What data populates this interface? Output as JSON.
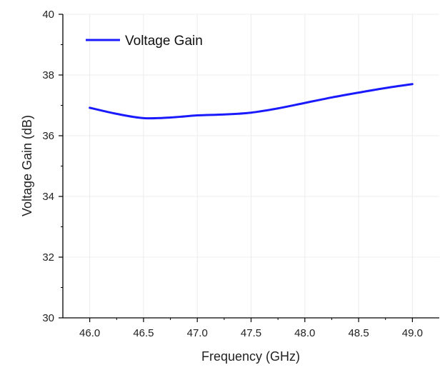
{
  "chart_data": {
    "type": "line",
    "title": "",
    "xlabel": "Frequency (GHz)",
    "ylabel": "Voltage Gain (dB)",
    "xlim": [
      45.75,
      49.25
    ],
    "ylim": [
      30,
      40
    ],
    "xticks": [
      46.0,
      46.5,
      47.0,
      47.5,
      48.0,
      48.5,
      49.0
    ],
    "xtick_labels": [
      "46.0",
      "46.5",
      "47.0",
      "47.5",
      "48.0",
      "48.5",
      "49.0"
    ],
    "yticks": [
      30,
      32,
      34,
      36,
      38,
      40
    ],
    "ytick_labels": [
      "30",
      "32",
      "34",
      "36",
      "38",
      "40"
    ],
    "grid": true,
    "legend_position": "top-left",
    "series": [
      {
        "name": "Voltage Gain",
        "color": "#1a1aff",
        "x": [
          46.0,
          46.25,
          46.5,
          46.75,
          47.0,
          47.25,
          47.5,
          47.75,
          48.0,
          48.25,
          48.5,
          48.75,
          49.0
        ],
        "y": [
          36.92,
          36.72,
          36.58,
          36.6,
          36.67,
          36.7,
          36.76,
          36.9,
          37.08,
          37.26,
          37.42,
          37.57,
          37.7
        ]
      }
    ]
  }
}
